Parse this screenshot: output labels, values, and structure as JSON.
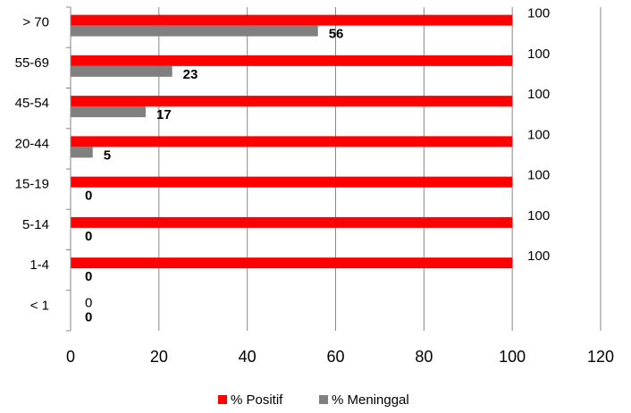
{
  "chart_data": {
    "type": "bar",
    "orientation": "horizontal",
    "categories": [
      "> 70",
      "55-69",
      "45-54",
      "20-44",
      "15-19",
      "5-14",
      "1-4",
      "< 1"
    ],
    "series": [
      {
        "name": "% Positif",
        "color": "#ff0000",
        "values": [
          100,
          100,
          100,
          100,
          100,
          100,
          100,
          0
        ],
        "labels": [
          "100",
          "100",
          "100",
          "100",
          "100",
          "100",
          "100",
          "0"
        ]
      },
      {
        "name": "% Meninggal",
        "color": "#808080",
        "values": [
          56,
          23,
          17,
          5,
          0,
          0,
          0,
          0
        ],
        "labels": [
          "56",
          "23",
          "17",
          "5",
          "0",
          "0",
          "0",
          "0"
        ]
      }
    ],
    "xlim": [
      0,
      120
    ],
    "xticks": [
      0,
      20,
      40,
      60,
      80,
      100,
      120
    ],
    "grid": true,
    "legend": "bottom"
  }
}
